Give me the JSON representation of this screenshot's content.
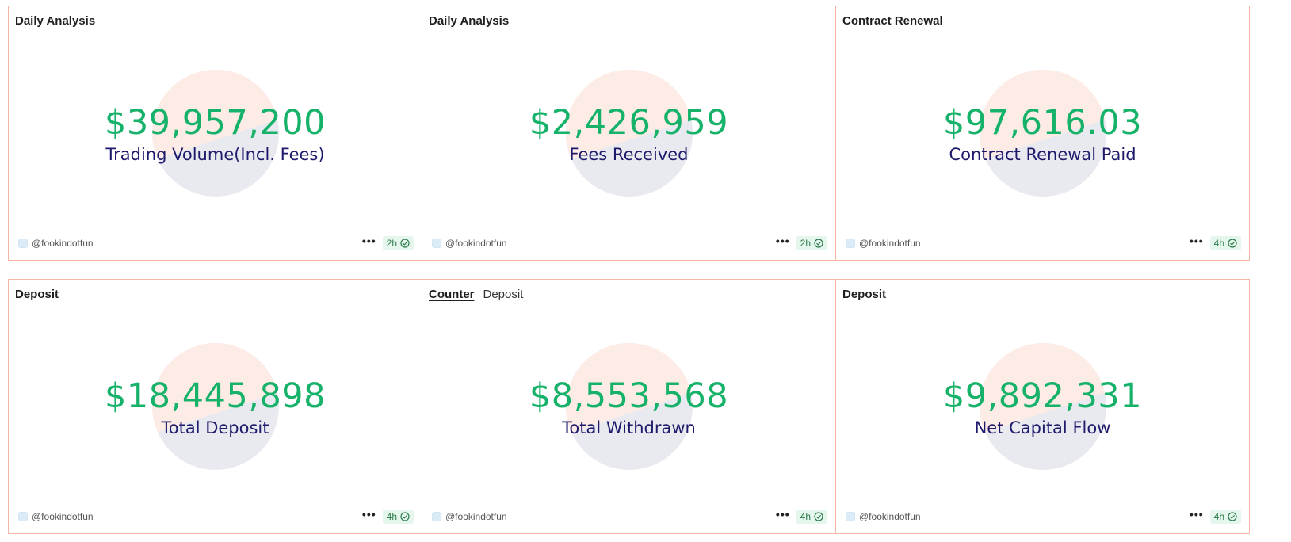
{
  "colors": {
    "border": "#f8b4a4",
    "value": "#17b26a",
    "label": "#1d1a6b",
    "disc_top": "#fdece6",
    "disc_bottom": "#e9e9f0",
    "badge_bg": "#e5f6ec"
  },
  "cards": [
    {
      "header": {
        "title": "Daily Analysis"
      },
      "value": "$39,957,200",
      "label": "Trading Volume(Incl. Fees)",
      "author": "@fookindotfun",
      "more_icon": "more-horizontal-icon",
      "refresh": "2h",
      "status_icon": "check-circle-icon"
    },
    {
      "header": {
        "title": "Daily Analysis"
      },
      "value": "$2,426,959",
      "label": "Fees Received",
      "author": "@fookindotfun",
      "more_icon": "more-horizontal-icon",
      "refresh": "2h",
      "status_icon": "check-circle-icon"
    },
    {
      "header": {
        "title": "Contract Renewal"
      },
      "value": "$97,616.03",
      "label": "Contract Renewal Paid",
      "author": "@fookindotfun",
      "more_icon": "more-horizontal-icon",
      "refresh": "4h",
      "status_icon": "check-circle-icon"
    },
    {
      "header": {
        "title": "Deposit"
      },
      "value": "$18,445,898",
      "label": "Total Deposit",
      "author": "@fookindotfun",
      "more_icon": "more-horizontal-icon",
      "refresh": "4h",
      "status_icon": "check-circle-icon"
    },
    {
      "header": {
        "tab_active": "Counter",
        "tab": "Deposit"
      },
      "value": "$8,553,568",
      "label": "Total Withdrawn",
      "author": "@fookindotfun",
      "more_icon": "more-horizontal-icon",
      "refresh": "4h",
      "status_icon": "check-circle-icon"
    },
    {
      "header": {
        "title": "Deposit"
      },
      "value": "$9,892,331",
      "label": "Net Capital Flow",
      "author": "@fookindotfun",
      "more_icon": "more-horizontal-icon",
      "refresh": "4h",
      "status_icon": "check-circle-icon"
    }
  ]
}
